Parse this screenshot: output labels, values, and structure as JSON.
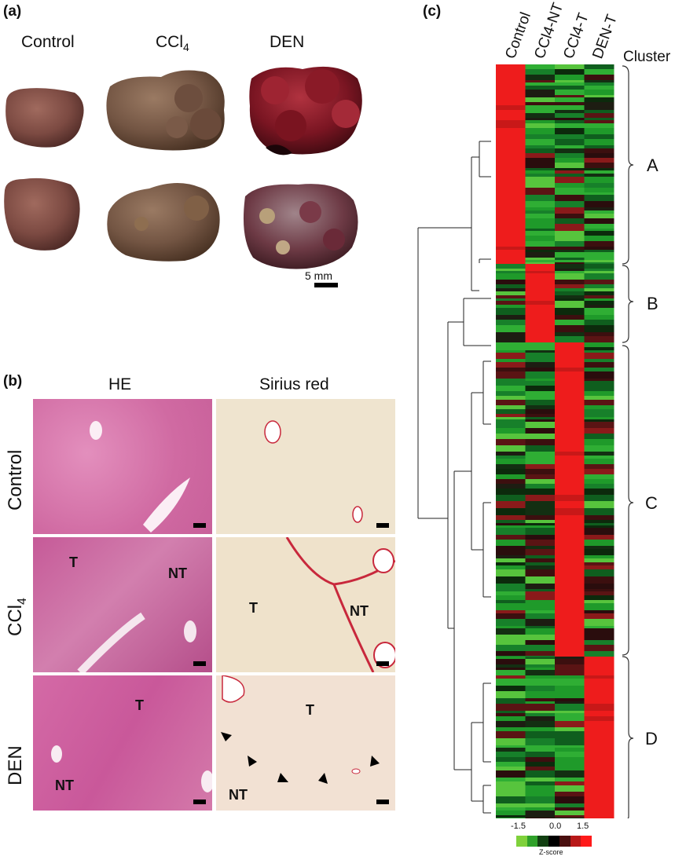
{
  "panel_a": {
    "letter": "(a)",
    "columns": [
      "Control",
      "CCl",
      "DEN"
    ],
    "ccl_subscript": "4",
    "scale_label": "5 mm"
  },
  "panel_b": {
    "letter": "(b)",
    "columns": [
      "HE",
      "Sirius red"
    ],
    "rows": [
      "Control",
      "CCl",
      "DEN"
    ],
    "ccl_subscript": "4",
    "region_labels": {
      "tumor": "T",
      "non_tumor": "NT"
    }
  },
  "panel_c": {
    "letter": "(c)",
    "columns": [
      "Control",
      "CCl4-NT",
      "CCl4-T",
      "DEN-T"
    ],
    "cluster_header": "Cluster",
    "clusters": [
      "A",
      "B",
      "C",
      "D"
    ],
    "legend": {
      "ticks": [
        "-1.5",
        "0.0",
        "1.5"
      ],
      "title": "Z-score",
      "colors": [
        "#7fd13b",
        "#2fa12a",
        "#124012",
        "#000000",
        "#4a0f0f",
        "#b81818",
        "#ff1a1a"
      ]
    }
  },
  "colors": {
    "heat_red": "#ee1c1c",
    "heat_green": "#1e9a2a",
    "he_pink": "#d86aa6",
    "sirius_bg": "#efe3cc",
    "sirius_red": "#c8283c",
    "liver_brown": "#7a4a3d",
    "tumor_red": "#8a1d25"
  }
}
